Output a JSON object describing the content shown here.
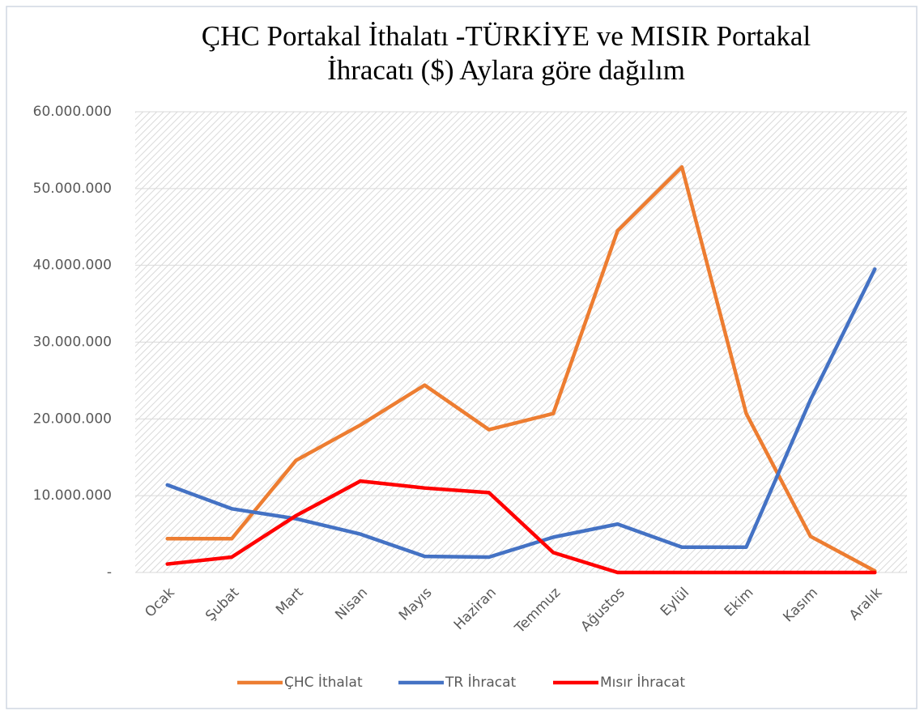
{
  "chart_data": {
    "type": "line",
    "title": [
      "ÇHC Portakal İthalatı -TÜRKİYE ve MISIR Portakal",
      "İhracatı ($) Aylara göre dağılım"
    ],
    "categories": [
      "Ocak",
      "Şubat",
      "Mart",
      "Nisan",
      "Mayıs",
      "Haziran",
      "Temmuz",
      "Ağustos",
      "Eylül",
      "Ekim",
      "Kasım",
      "Aralık"
    ],
    "series": [
      {
        "name": "ÇHC İthalat",
        "color": "#ed7d31",
        "values": [
          4400000,
          4400000,
          14600000,
          19200000,
          24400000,
          18600000,
          20700000,
          44500000,
          52800000,
          20700000,
          4700000,
          200000
        ]
      },
      {
        "name": "TR İhracat",
        "color": "#4472c4",
        "values": [
          11400000,
          8300000,
          7000000,
          5000000,
          2100000,
          2000000,
          4600000,
          6300000,
          3300000,
          3300000,
          22500000,
          39500000
        ]
      },
      {
        "name": "Mısır İhracat",
        "color": "#ff0000",
        "values": [
          1100000,
          2000000,
          7400000,
          11900000,
          11000000,
          10400000,
          2600000,
          0,
          0,
          0,
          0,
          0
        ]
      }
    ],
    "ylim": [
      0,
      60000000
    ],
    "yticks": [
      {
        "value": 0,
        "label": "-"
      },
      {
        "value": 10000000,
        "label": "10.000.000"
      },
      {
        "value": 20000000,
        "label": "20.000.000"
      },
      {
        "value": 30000000,
        "label": "30.000.000"
      },
      {
        "value": 40000000,
        "label": "40.000.000"
      },
      {
        "value": 50000000,
        "label": "50.000.000"
      },
      {
        "value": 60000000,
        "label": "60.000.000"
      }
    ],
    "grid": true,
    "legend": "bottom"
  }
}
